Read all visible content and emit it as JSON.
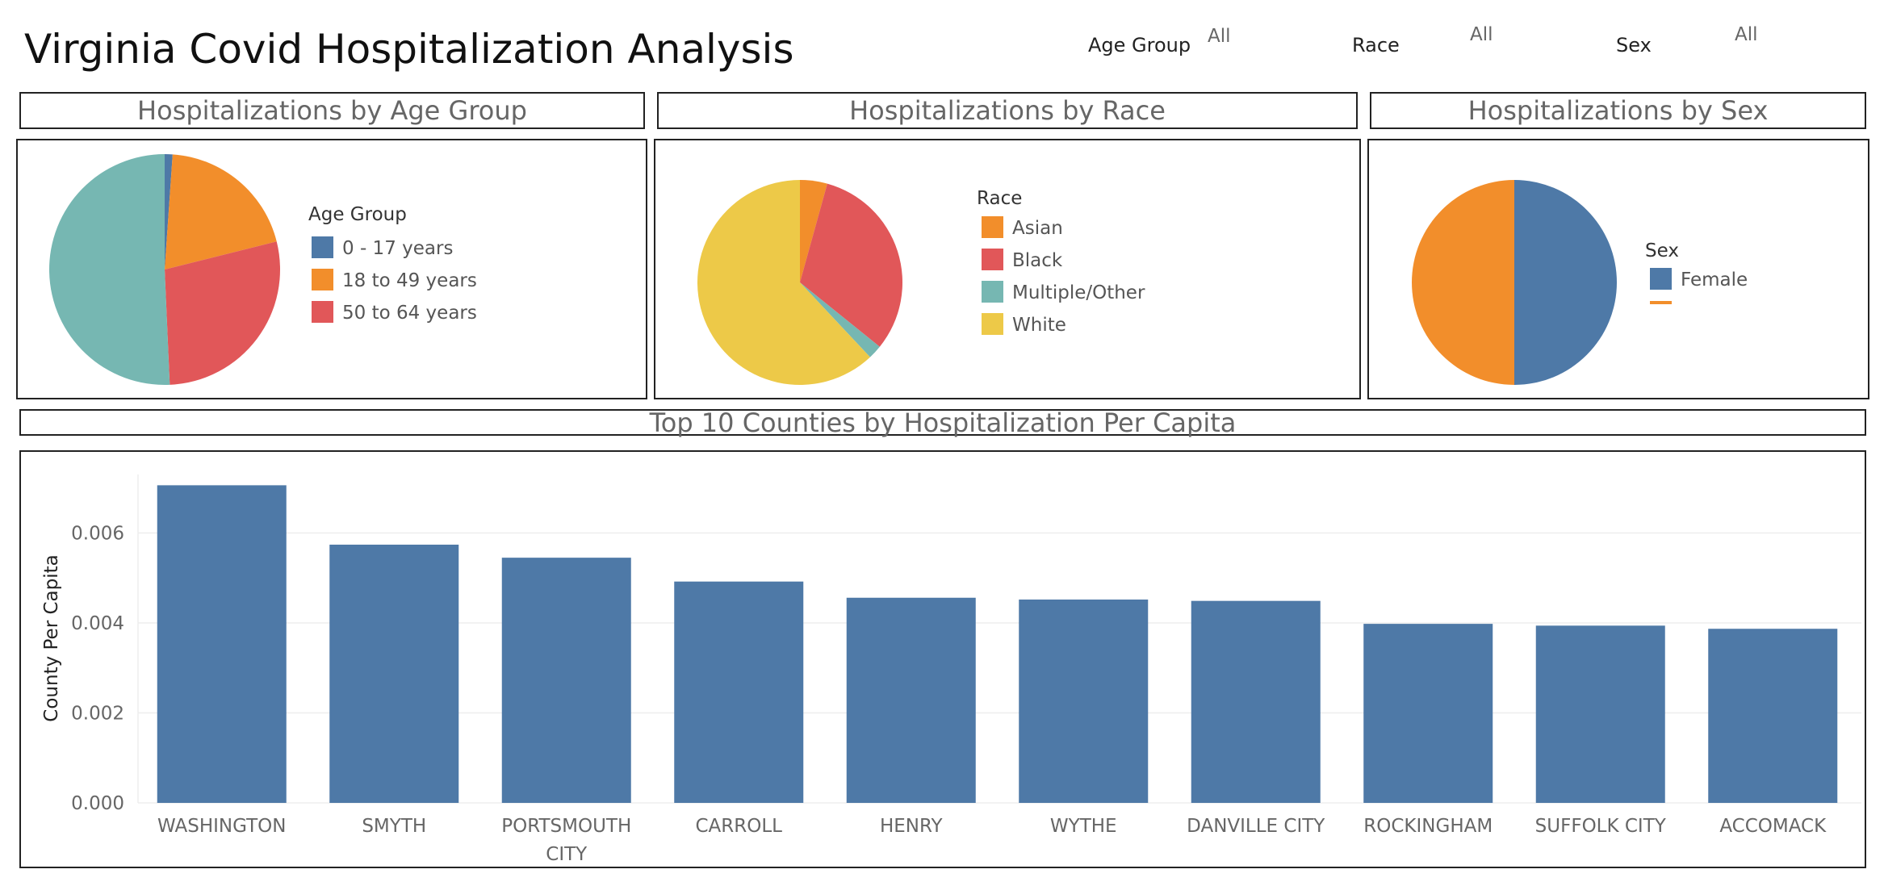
{
  "dashboard": {
    "title": "Virginia Covid Hospitalization Analysis"
  },
  "filters": [
    {
      "label": "Age Group",
      "value": "All"
    },
    {
      "label": "Race",
      "value": "All"
    },
    {
      "label": "Sex",
      "value": "All"
    }
  ],
  "colors": {
    "blue": "#4e79a7",
    "orange": "#f28e2b",
    "red": "#e15759",
    "teal": "#76b7b2",
    "yellow": "#edc948"
  },
  "sections": {
    "age": "Hospitalizations by Age Group",
    "race": "Hospitalizations by Race",
    "sex": "Hospitalizations by Sex",
    "counties": "Top 10 Counties by Hospitalization Per Capita"
  },
  "chart_data": [
    {
      "type": "pie",
      "title": "Hospitalizations by Age Group",
      "legend_title": "Age Group",
      "legend": [
        "0 - 17 years",
        "18 to 49 years",
        "50 to 64 years"
      ],
      "slices": [
        {
          "label": "0 - 17 years",
          "value": 1.1,
          "color": "#4e79a7"
        },
        {
          "label": "18 to 49 years",
          "value": 20.0,
          "color": "#f28e2b"
        },
        {
          "label": "50 to 64 years",
          "value": 28.2,
          "color": "#e15759"
        },
        {
          "label": "",
          "value": 50.7,
          "color": "#76b7b2"
        }
      ]
    },
    {
      "type": "pie",
      "title": "Hospitalizations by Race",
      "legend_title": "Race",
      "legend": [
        "Asian",
        "Black",
        "Multiple/Other",
        "White"
      ],
      "slices": [
        {
          "label": "Asian",
          "value": 4.3,
          "color": "#f28e2b"
        },
        {
          "label": "Black",
          "value": 31.5,
          "color": "#e15759"
        },
        {
          "label": "Multiple/Other",
          "value": 2.2,
          "color": "#76b7b2"
        },
        {
          "label": "White",
          "value": 62.0,
          "color": "#edc948"
        }
      ]
    },
    {
      "type": "pie",
      "title": "Hospitalizations by Sex",
      "legend_title": "Sex",
      "legend": [
        "Female"
      ],
      "slices": [
        {
          "label": "Female",
          "value": 50.0,
          "color": "#4e79a7"
        },
        {
          "label": "",
          "value": 50.0,
          "color": "#f28e2b"
        }
      ]
    },
    {
      "type": "bar",
      "title": "Top 10 Counties by Hospitalization Per Capita",
      "ylabel": "County Per Capita",
      "xlabel": "",
      "ylim": [
        0,
        0.0073
      ],
      "yticks": [
        "0.000",
        "0.002",
        "0.004",
        "0.006"
      ],
      "categories": [
        "WASHINGTON",
        "SMYTH",
        "PORTSMOUTH CITY",
        "CARROLL",
        "HENRY",
        "WYTHE",
        "DANVILLE CITY",
        "ROCKINGHAM",
        "SUFFOLK CITY",
        "ACCOMACK"
      ],
      "values": [
        0.00706,
        0.00574,
        0.00545,
        0.00492,
        0.00456,
        0.00452,
        0.00449,
        0.00398,
        0.00394,
        0.00387
      ],
      "color": "#4e79a7"
    }
  ]
}
